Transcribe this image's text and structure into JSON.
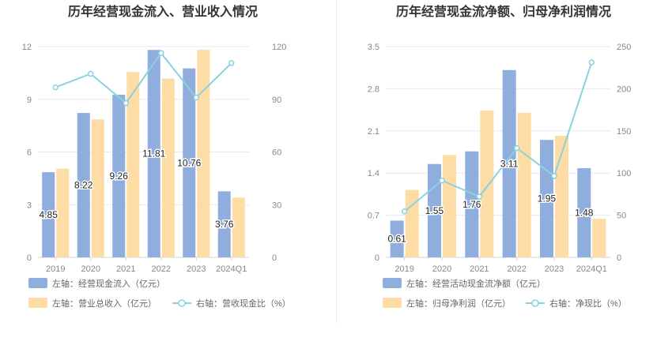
{
  "colors": {
    "bar1": "#8faede",
    "bar2": "#fedca5",
    "line": "#89d3df",
    "grid": "#e6e9f0",
    "tick": "#888888",
    "title": "#333333",
    "label": "#222222",
    "legend": "#666666"
  },
  "chart_data": [
    {
      "type": "bar",
      "title": "历年经营现金流入、营业收入情况",
      "categories": [
        "2019",
        "2020",
        "2021",
        "2022",
        "2023",
        "2024Q1"
      ],
      "left_axis": {
        "min": 0,
        "max": 12,
        "ticks": [
          "0",
          "3",
          "6",
          "9",
          "12"
        ]
      },
      "right_axis": {
        "min": 0,
        "max": 120,
        "ticks": [
          "0",
          "30",
          "60",
          "90",
          "120"
        ]
      },
      "series": [
        {
          "name": "左轴：经营现金流入（亿元）",
          "axis": "left",
          "kind": "bar",
          "values": [
            4.85,
            8.22,
            9.26,
            11.81,
            10.76,
            3.76
          ],
          "labels": [
            "4.85",
            "8.22",
            "9.26",
            "11.81",
            "10.76",
            "3.76"
          ]
        },
        {
          "name": "左轴：营业总收入（亿元）",
          "axis": "left",
          "kind": "bar",
          "values": [
            5.05,
            7.85,
            10.55,
            10.18,
            11.82,
            3.4
          ]
        },
        {
          "name": "右轴：营收现金比（%）",
          "axis": "right",
          "kind": "line",
          "values": [
            96.8,
            104.5,
            87.8,
            116.3,
            91.0,
            110.6
          ]
        }
      ]
    },
    {
      "type": "bar",
      "title": "历年经营现金流净额、归母净利润情况",
      "categories": [
        "2019",
        "2020",
        "2021",
        "2022",
        "2023",
        "2024Q1"
      ],
      "left_axis": {
        "min": 0,
        "max": 3.5,
        "ticks": [
          "0",
          "0.7",
          "1.4",
          "2.1",
          "2.8",
          "3.5"
        ]
      },
      "right_axis": {
        "min": 0,
        "max": 250,
        "ticks": [
          "0",
          "50",
          "100",
          "150",
          "200",
          "250"
        ]
      },
      "series": [
        {
          "name": "左轴：经营活动现金流净额（亿元）",
          "axis": "left",
          "kind": "bar",
          "values": [
            0.61,
            1.55,
            1.76,
            3.11,
            1.95,
            1.48
          ],
          "labels": [
            "0.61",
            "1.55",
            "1.76",
            "3.11",
            "1.95",
            "1.48"
          ]
        },
        {
          "name": "左轴：归母净利润（亿元）",
          "axis": "left",
          "kind": "bar",
          "values": [
            1.12,
            1.7,
            2.44,
            2.4,
            2.02,
            0.64
          ]
        },
        {
          "name": "右轴：净现比（%）",
          "axis": "right",
          "kind": "line",
          "values": [
            54.5,
            91.2,
            72.1,
            129.6,
            96.5,
            231.3
          ]
        }
      ]
    }
  ]
}
